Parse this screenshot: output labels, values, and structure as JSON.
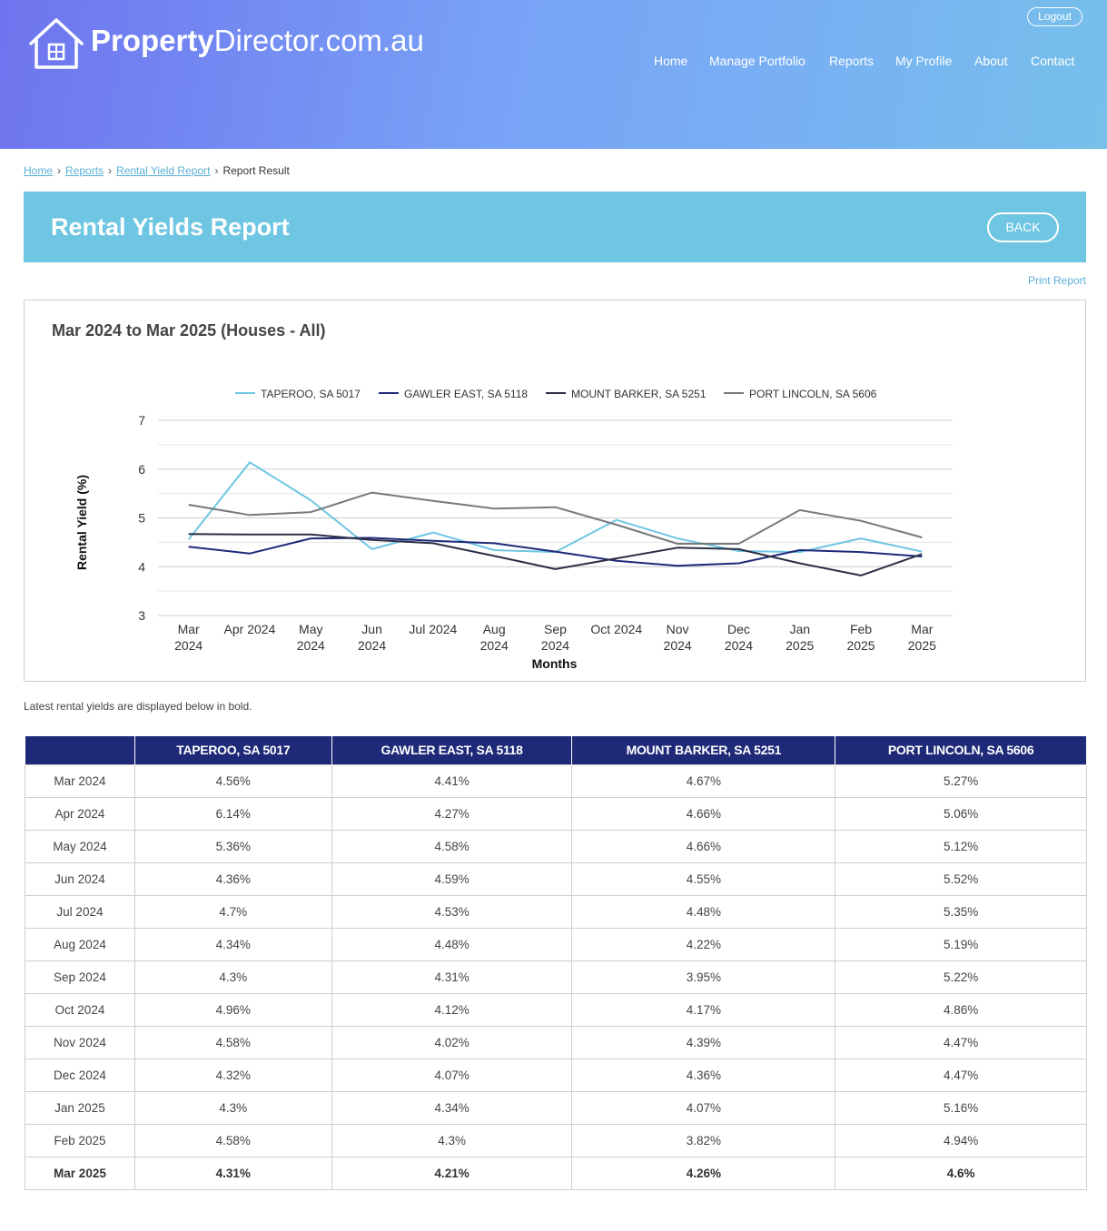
{
  "brand": {
    "name_bold": "Property",
    "name_rest": "Director.com.au"
  },
  "header": {
    "logout_label": "Logout",
    "nav": [
      "Home",
      "Manage Portfolio",
      "Reports",
      "My Profile",
      "About",
      "Contact"
    ]
  },
  "breadcrumb": {
    "items": [
      "Home",
      "Reports",
      "Rental Yield Report"
    ],
    "current": "Report Result"
  },
  "page": {
    "title": "Rental Yields Report",
    "back_label": "BACK",
    "print_label": "Print Report"
  },
  "chart_title": "Mar 2024 to Mar 2025 (Houses - All)",
  "chart_data": {
    "type": "line",
    "title": "Mar 2024 to Mar 2025 (Houses - All)",
    "xlabel": "Months",
    "ylabel": "Rental Yield (%)",
    "ylim": [
      3,
      7
    ],
    "yticks": [
      3,
      4,
      5,
      6,
      7
    ],
    "legend": "top",
    "grid": true,
    "categories": [
      "Mar 2024",
      "Apr 2024",
      "May 2024",
      "Jun 2024",
      "Jul 2024",
      "Aug 2024",
      "Sep 2024",
      "Oct 2024",
      "Nov 2024",
      "Dec 2024",
      "Jan 2025",
      "Feb 2025",
      "Mar 2025"
    ],
    "series": [
      {
        "name": "TAPEROO, SA 5017",
        "color": "#6ec6e2",
        "values": [
          4.56,
          6.14,
          5.36,
          4.36,
          4.7,
          4.34,
          4.3,
          4.96,
          4.58,
          4.32,
          4.3,
          4.58,
          4.31
        ]
      },
      {
        "name": "GAWLER EAST, SA 5118",
        "color": "#1e2a78",
        "values": [
          4.41,
          4.27,
          4.58,
          4.59,
          4.53,
          4.48,
          4.31,
          4.12,
          4.02,
          4.07,
          4.34,
          4.3,
          4.21
        ]
      },
      {
        "name": "MOUNT BARKER, SA 5251",
        "color": "#2b2f45",
        "values": [
          4.67,
          4.66,
          4.66,
          4.55,
          4.48,
          4.22,
          3.95,
          4.17,
          4.39,
          4.36,
          4.07,
          3.82,
          4.26
        ]
      },
      {
        "name": "PORT LINCOLN, SA 5606",
        "color": "#767a7d",
        "values": [
          5.27,
          5.06,
          5.12,
          5.52,
          5.35,
          5.19,
          5.22,
          4.86,
          4.47,
          4.47,
          5.16,
          4.94,
          4.6
        ]
      }
    ]
  },
  "note": "Latest rental yields are displayed below in bold.",
  "table": {
    "headers": [
      "",
      "TAPEROO, SA 5017",
      "GAWLER EAST, SA 5118",
      "MOUNT BARKER, SA 5251",
      "PORT LINCOLN, SA 5606"
    ],
    "rows": [
      [
        "Mar 2024",
        "4.56%",
        "4.41%",
        "4.67%",
        "5.27%"
      ],
      [
        "Apr 2024",
        "6.14%",
        "4.27%",
        "4.66%",
        "5.06%"
      ],
      [
        "May 2024",
        "5.36%",
        "4.58%",
        "4.66%",
        "5.12%"
      ],
      [
        "Jun 2024",
        "4.36%",
        "4.59%",
        "4.55%",
        "5.52%"
      ],
      [
        "Jul 2024",
        "4.7%",
        "4.53%",
        "4.48%",
        "5.35%"
      ],
      [
        "Aug 2024",
        "4.34%",
        "4.48%",
        "4.22%",
        "5.19%"
      ],
      [
        "Sep 2024",
        "4.3%",
        "4.31%",
        "3.95%",
        "5.22%"
      ],
      [
        "Oct 2024",
        "4.96%",
        "4.12%",
        "4.17%",
        "4.86%"
      ],
      [
        "Nov 2024",
        "4.58%",
        "4.02%",
        "4.39%",
        "4.47%"
      ],
      [
        "Dec 2024",
        "4.32%",
        "4.07%",
        "4.36%",
        "4.47%"
      ],
      [
        "Jan 2025",
        "4.3%",
        "4.34%",
        "4.07%",
        "5.16%"
      ],
      [
        "Feb 2025",
        "4.58%",
        "4.3%",
        "3.82%",
        "4.94%"
      ],
      [
        "Mar 2025",
        "4.31%",
        "4.21%",
        "4.26%",
        "4.6%"
      ]
    ]
  }
}
